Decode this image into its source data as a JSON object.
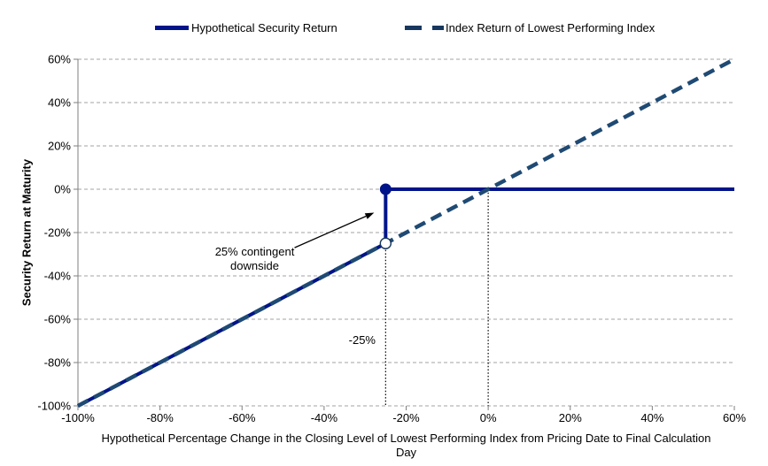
{
  "page": {
    "background": "#FFFFFF"
  },
  "legend": {
    "position": "top",
    "items": [
      {
        "label": "Hypothetical Security Return",
        "style": "solid",
        "color": "#001489"
      },
      {
        "label": "Index Return of Lowest Performing Index",
        "style": "dashed",
        "color": "#17375E"
      }
    ]
  },
  "chart_data": {
    "type": "line",
    "title": "",
    "xlabel": "Hypothetical Percentage Change in the Closing Level of Lowest Performing Index from Pricing Date to Final Calculation Day",
    "xlabel_lines": [
      "Hypothetical Percentage Change in the Closing Level of Lowest Performing Index from Pricing Date to Final Calculation",
      "Day"
    ],
    "ylabel": "Security Return at Maturity",
    "xlim": [
      -100,
      60
    ],
    "ylim": [
      -100,
      60
    ],
    "x_ticks": {
      "values": [
        -100,
        -80,
        -60,
        -40,
        -20,
        0,
        20,
        40,
        60
      ],
      "labels": [
        "-100%",
        "-80%",
        "-60%",
        "-40%",
        "-20%",
        "0%",
        "20%",
        "40%",
        "60%"
      ]
    },
    "y_ticks": {
      "values": [
        60,
        40,
        20,
        0,
        -20,
        -40,
        -60,
        -80,
        -100
      ],
      "labels": [
        "60%",
        "40%",
        "20%",
        "0%",
        "-20%",
        "-40%",
        "-60%",
        "-80%",
        "-100%"
      ]
    },
    "grid": {
      "horizontal": true,
      "vertical": false,
      "style": "dashed",
      "color": "#A3A3A3"
    },
    "axis_color": "#7F7F7F",
    "series": [
      {
        "name": "Hypothetical Security Return",
        "line_style": "solid",
        "color": "#001489",
        "width": 4,
        "points": [
          [
            -100,
            -100
          ],
          [
            -25,
            -25
          ],
          [
            -25,
            0
          ],
          [
            60,
            0
          ]
        ]
      },
      {
        "name": "Index Return of Lowest Performing Index",
        "line_style": "dashed",
        "color": "#1F4A73",
        "width": 4.5,
        "points": [
          [
            -100,
            -100
          ],
          [
            60,
            60
          ]
        ]
      }
    ],
    "markers": [
      {
        "x": -25,
        "y": 0,
        "style": "filled",
        "color": "#001489"
      },
      {
        "x": -25,
        "y": -25,
        "style": "open",
        "color": "#17375E"
      }
    ],
    "reference_lines": [
      {
        "x": -25,
        "y_from": -25,
        "y_to": -100,
        "style": "dotted",
        "color": "#000000"
      },
      {
        "x": 0,
        "y_from": 0,
        "y_to": -100,
        "style": "dotted",
        "color": "#000000"
      }
    ],
    "annotations": [
      {
        "id": "contingent-downside",
        "text": "25% contingent downside",
        "arrow": {
          "from": [
            -47.2,
            -27.0
          ],
          "to": [
            -27.8,
            -10.8
          ]
        }
      },
      {
        "id": "barrier-label",
        "text": "-25%"
      }
    ]
  }
}
